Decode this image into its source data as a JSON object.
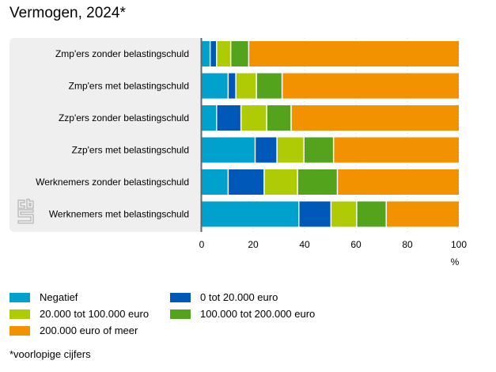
{
  "title": "Vermogen, 2024*",
  "footnote": "*voorlopige cijfers",
  "chart_data": {
    "type": "bar",
    "orientation": "horizontal",
    "stacked": true,
    "title": "Vermogen, 2024*",
    "xlabel": "%",
    "ylabel": "",
    "xlim": [
      0,
      100
    ],
    "xticks": [
      0,
      20,
      40,
      60,
      80,
      100
    ],
    "grid": true,
    "legend_position": "bottom",
    "categories": [
      "Zmp'ers zonder belastingschuld",
      "Zmp'ers met belastingschuld",
      "Zzp'ers zonder belastingschuld",
      "Zzp'ers met belastingschuld",
      "Werknemers zonder belastingschuld",
      "Werknemers met belastingschuld"
    ],
    "series": [
      {
        "name": "Negatief",
        "color": "#00a1cd",
        "values": [
          3.5,
          10.5,
          6,
          21,
          10.5,
          38
        ]
      },
      {
        "name": "0 tot 20.000 euro",
        "color": "#0058b8",
        "values": [
          2.5,
          3,
          9.5,
          8.5,
          14,
          12.5
        ]
      },
      {
        "name": "20.000 tot 100.000 euro",
        "color": "#afcb05",
        "values": [
          5.5,
          8,
          10,
          10.5,
          13,
          10
        ]
      },
      {
        "name": "100.000 tot 200.000 euro",
        "color": "#53a31d",
        "values": [
          7,
          10,
          9.5,
          11.5,
          15.5,
          11.5
        ]
      },
      {
        "name": "200.000 euro of meer",
        "color": "#f39200",
        "values": [
          81.5,
          68.5,
          65,
          48.5,
          47,
          28
        ]
      }
    ]
  },
  "legend": [
    {
      "label": "Negatief",
      "color": "#00a1cd"
    },
    {
      "label": "0 tot 20.000 euro",
      "color": "#0058b8"
    },
    {
      "label": "20.000 tot 100.000 euro",
      "color": "#afcb05"
    },
    {
      "label": "100.000 tot 200.000 euro",
      "color": "#53a31d"
    },
    {
      "label": "200.000 euro of meer",
      "color": "#f39200"
    }
  ],
  "logo": "cbs-logo"
}
